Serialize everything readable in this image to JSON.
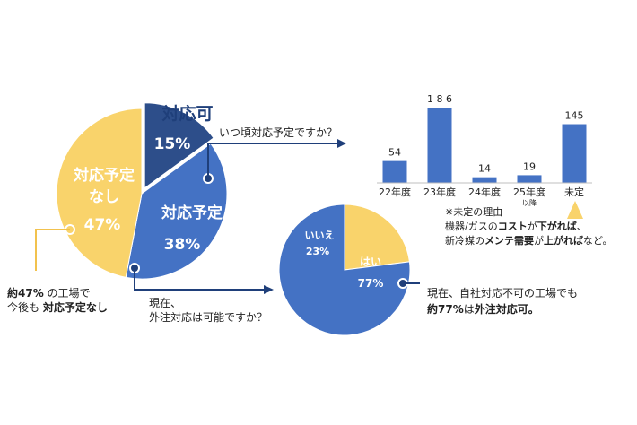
{
  "colors": {
    "navy": "#2d4e8a",
    "blue": "#4472c4",
    "yellow": "#f9d36b",
    "bar": "#4472c4",
    "triangle": "#f9d36b",
    "text": "#222222",
    "arrow": "#1f3f7a"
  },
  "chart_data": [
    {
      "type": "pie",
      "slices": [
        {
          "label": "対応可",
          "value": 15,
          "value_label": "15%",
          "color": "#2d4e8a"
        },
        {
          "label": "対応予定",
          "value": 38,
          "value_label": "38%",
          "color": "#4472c4"
        },
        {
          "label": "対応予定なし",
          "value": 47,
          "value_label": "47%",
          "color": "#f9d36b"
        }
      ]
    },
    {
      "type": "bar",
      "title": "いつ頃対応予定ですか？",
      "categories": [
        "22年度",
        "23年度",
        "24年度",
        "25年度",
        "未定"
      ],
      "category_sub": [
        "",
        "",
        "",
        "以降",
        ""
      ],
      "values": [
        54,
        186,
        14,
        19,
        145
      ],
      "value_labels": [
        "54",
        "1 8 6",
        "14",
        "19",
        "145"
      ],
      "ylim": [
        0,
        200
      ]
    },
    {
      "type": "pie",
      "title": "現在、外注対応は可能ですか？",
      "slices": [
        {
          "label": "はい",
          "value": 77,
          "value_label": "77%",
          "color": "#4472c4"
        },
        {
          "label": "いいえ",
          "value": 23,
          "value_label": "23%",
          "color": "#f9d36b"
        }
      ]
    }
  ],
  "labels": {
    "pie1_kanou": "対応可",
    "pie1_kanou_pct": "15%",
    "pie1_yotei": "対応予定",
    "pie1_yotei_pct": "38%",
    "pie1_nashi_1": "対応予定",
    "pie1_nashi_2": "なし",
    "pie1_nashi_pct": "47%",
    "q1": "いつ頃対応予定ですか？",
    "q2_line1": "現在、",
    "q2_line2": "外注対応は可能ですか？",
    "pie2_yes": "はい",
    "pie2_yes_pct": "77%",
    "pie2_no": "いいえ",
    "pie2_no_pct": "23%",
    "note_left_pct": "約47%",
    "note_left_1b": " の工場で",
    "note_left_2a": "今後も ",
    "note_left_2b": "対応予定なし",
    "note_right_1": "現在、自社対応不可の工場でも",
    "note_right_2a": "約77%",
    "note_right_2b": "は",
    "note_right_2c": "外注対応可。",
    "reason_title": "※未定の理由",
    "reason_1a": "機器/ガスの",
    "reason_1b": "コスト",
    "reason_1c": "が",
    "reason_1d": "下がれば",
    "reason_1e": "、",
    "reason_2a": "新冷媒の",
    "reason_2b": "メンテ需要",
    "reason_2c": "が",
    "reason_2d": "上がれば",
    "reason_2e": "など。"
  }
}
